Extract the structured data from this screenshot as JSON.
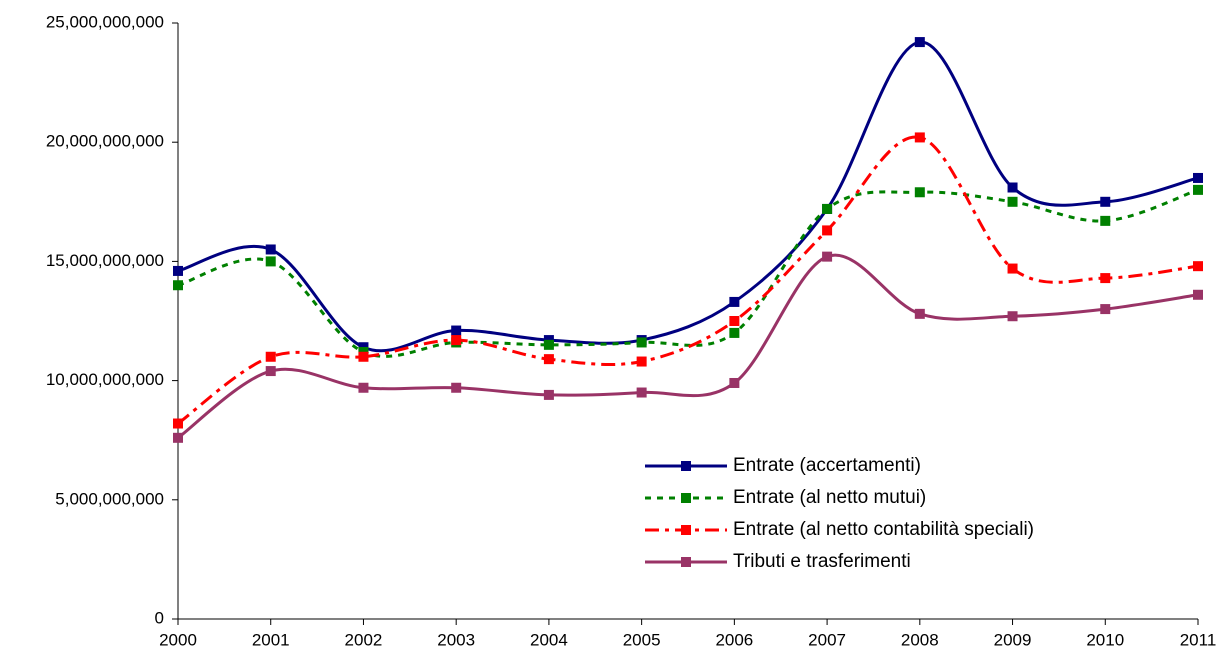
{
  "chart_data": {
    "type": "line",
    "categories": [
      "2000",
      "2001",
      "2002",
      "2003",
      "2004",
      "2005",
      "2006",
      "2007",
      "2008",
      "2009",
      "2010",
      "2011"
    ],
    "series": [
      {
        "name": "Entrate (accertamenti)",
        "color": "#000080",
        "line_style": "solid",
        "values": [
          14600000000,
          15500000000,
          11400000000,
          12100000000,
          11700000000,
          11700000000,
          13300000000,
          17200000000,
          24200000000,
          18100000000,
          17500000000,
          18500000000
        ]
      },
      {
        "name": "Entrate (al netto mutui)",
        "color": "#008000",
        "line_style": "dashed",
        "values": [
          14000000000,
          15000000000,
          11200000000,
          11600000000,
          11500000000,
          11600000000,
          12000000000,
          17200000000,
          17900000000,
          17500000000,
          16700000000,
          18000000000
        ]
      },
      {
        "name": "Entrate (al netto contabilità speciali)",
        "color": "#ff0000",
        "line_style": "dashdot",
        "values": [
          8200000000,
          11000000000,
          11000000000,
          11700000000,
          10900000000,
          10800000000,
          12500000000,
          16300000000,
          20200000000,
          14700000000,
          14300000000,
          14800000000
        ]
      },
      {
        "name": "Tributi e trasferimenti",
        "color": "#993366",
        "line_style": "solid",
        "values": [
          7600000000,
          10400000000,
          9700000000,
          9700000000,
          9400000000,
          9500000000,
          9900000000,
          15200000000,
          12800000000,
          12700000000,
          13000000000,
          13600000000
        ]
      }
    ],
    "ylim": [
      0,
      25000000000
    ],
    "yticks": [
      0,
      {
        "value": 5000000000,
        "label": "5,000,000,000"
      },
      {
        "value": 10000000000,
        "label": "10,000,000,000"
      },
      {
        "value": 15000000000,
        "label": "15,000,000,000"
      },
      {
        "value": 20000000000,
        "label": "20,000,000,000"
      },
      {
        "value": 25000000000,
        "label": "25,000,000,000"
      }
    ],
    "legend_position": "lower right",
    "grid": false
  }
}
